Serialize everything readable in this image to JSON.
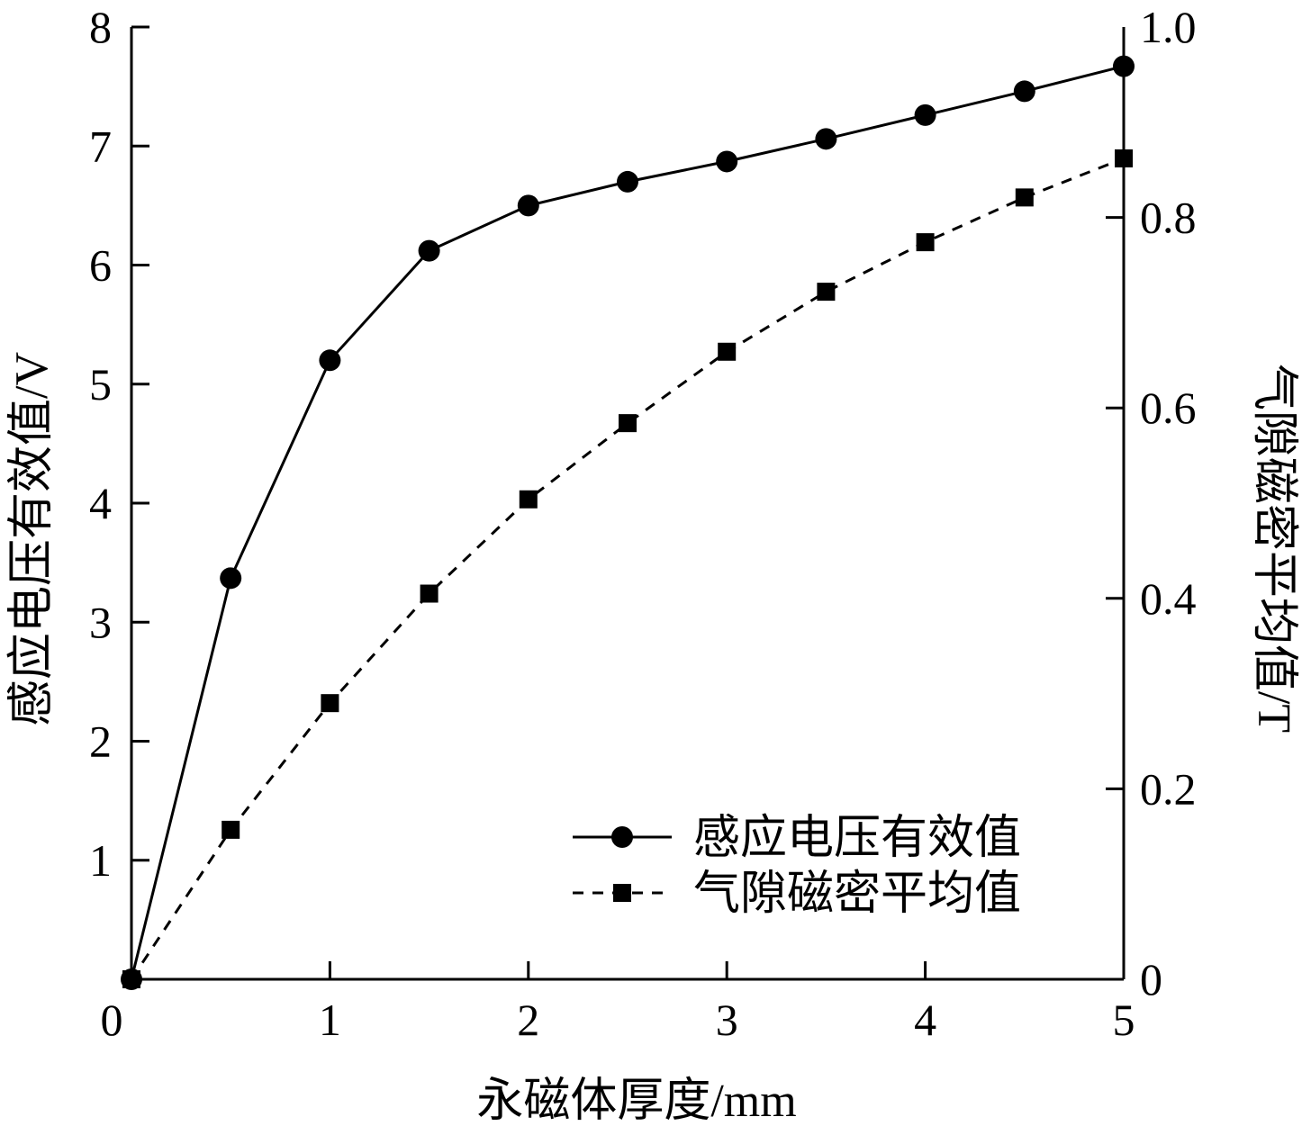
{
  "chart_data": {
    "type": "line",
    "xlabel": "永磁体厚度/mm",
    "ylabel_left": "感应电压有效值/V",
    "ylabel_right": "气隙磁密平均值/T",
    "xlim": [
      0,
      5
    ],
    "ylim_left": [
      0,
      8
    ],
    "ylim_right": [
      0,
      1.0
    ],
    "x_ticks": [
      0,
      1,
      2,
      3,
      4,
      5
    ],
    "x_tick_labels": [
      "0",
      "1",
      "2",
      "3",
      "4",
      "5"
    ],
    "y_left_ticks": [
      1,
      2,
      3,
      4,
      5,
      6,
      7,
      8
    ],
    "y_left_tick_labels": [
      "1",
      "2",
      "3",
      "4",
      "5",
      "6",
      "7",
      "8"
    ],
    "y_right_ticks": [
      0,
      0.2,
      0.4,
      0.6,
      0.8,
      1.0
    ],
    "y_right_tick_labels": [
      "0",
      "0.2",
      "0.4",
      "0.6",
      "0.8",
      "1.0"
    ],
    "grid": false,
    "legend_position": "bottom-right",
    "series": [
      {
        "name": "感应电压有效值",
        "axis": "left",
        "marker": "circle",
        "line_style": "solid",
        "x": [
          0,
          0.5,
          1,
          1.5,
          2,
          2.5,
          3,
          3.5,
          4,
          4.5,
          5
        ],
        "values": [
          0,
          3.37,
          5.2,
          6.12,
          6.5,
          6.7,
          6.87,
          7.06,
          7.26,
          7.46,
          7.67
        ]
      },
      {
        "name": "气隙磁密平均值",
        "axis": "right",
        "marker": "square",
        "line_style": "dashed",
        "x": [
          0,
          0.5,
          1,
          1.5,
          2,
          2.5,
          3,
          3.5,
          4,
          4.5,
          5
        ],
        "values": [
          0,
          0.157,
          0.29,
          0.405,
          0.504,
          0.584,
          0.659,
          0.722,
          0.774,
          0.821,
          0.862
        ]
      }
    ]
  }
}
